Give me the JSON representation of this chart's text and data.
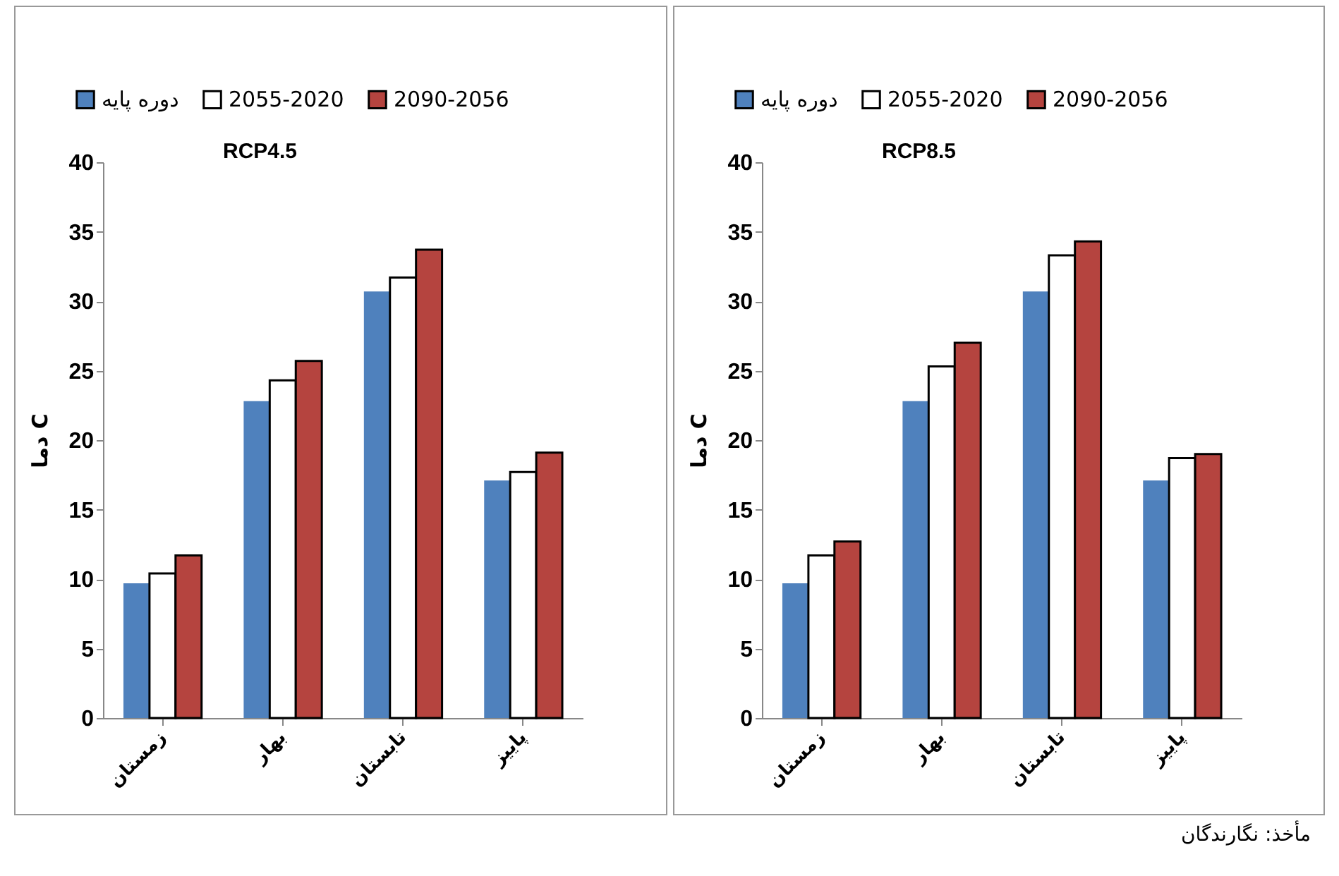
{
  "chart_data": [
    {
      "type": "bar",
      "title": "RCP4.5",
      "ylabel": "دما C",
      "categories": [
        "زمستان",
        "بهار",
        "تابستان",
        "پاییز"
      ],
      "ylim": [
        0,
        40
      ],
      "yticks": [
        0,
        5,
        10,
        15,
        20,
        25,
        30,
        35,
        40
      ],
      "legend": "top",
      "series": [
        {
          "name": "دوره پایه",
          "color": "#4f81bd",
          "values": [
            9.7,
            22.8,
            30.7,
            17.1
          ]
        },
        {
          "name": "2055-2020",
          "color": "#ffffff",
          "values": [
            10.4,
            24.3,
            31.7,
            17.7
          ]
        },
        {
          "name": "2090-2056",
          "color": "#b5443f",
          "values": [
            11.7,
            25.7,
            33.7,
            19.1
          ]
        }
      ]
    },
    {
      "type": "bar",
      "title": "RCP8.5",
      "ylabel": "دما C",
      "categories": [
        "زمستان",
        "بهار",
        "تابستان",
        "پاییز"
      ],
      "ylim": [
        0,
        40
      ],
      "yticks": [
        0,
        5,
        10,
        15,
        20,
        25,
        30,
        35,
        40
      ],
      "legend": "top",
      "annotations": [
        "مأخذ: نگارندگان"
      ],
      "series": [
        {
          "name": "دوره پایه",
          "color": "#4f81bd",
          "values": [
            9.7,
            22.8,
            30.7,
            17.1
          ]
        },
        {
          "name": "2055-2020",
          "color": "#ffffff",
          "values": [
            11.7,
            25.3,
            33.3,
            18.7
          ]
        },
        {
          "name": "2090-2056",
          "color": "#b5443f",
          "values": [
            12.7,
            27.0,
            34.3,
            19.0
          ]
        }
      ]
    }
  ]
}
